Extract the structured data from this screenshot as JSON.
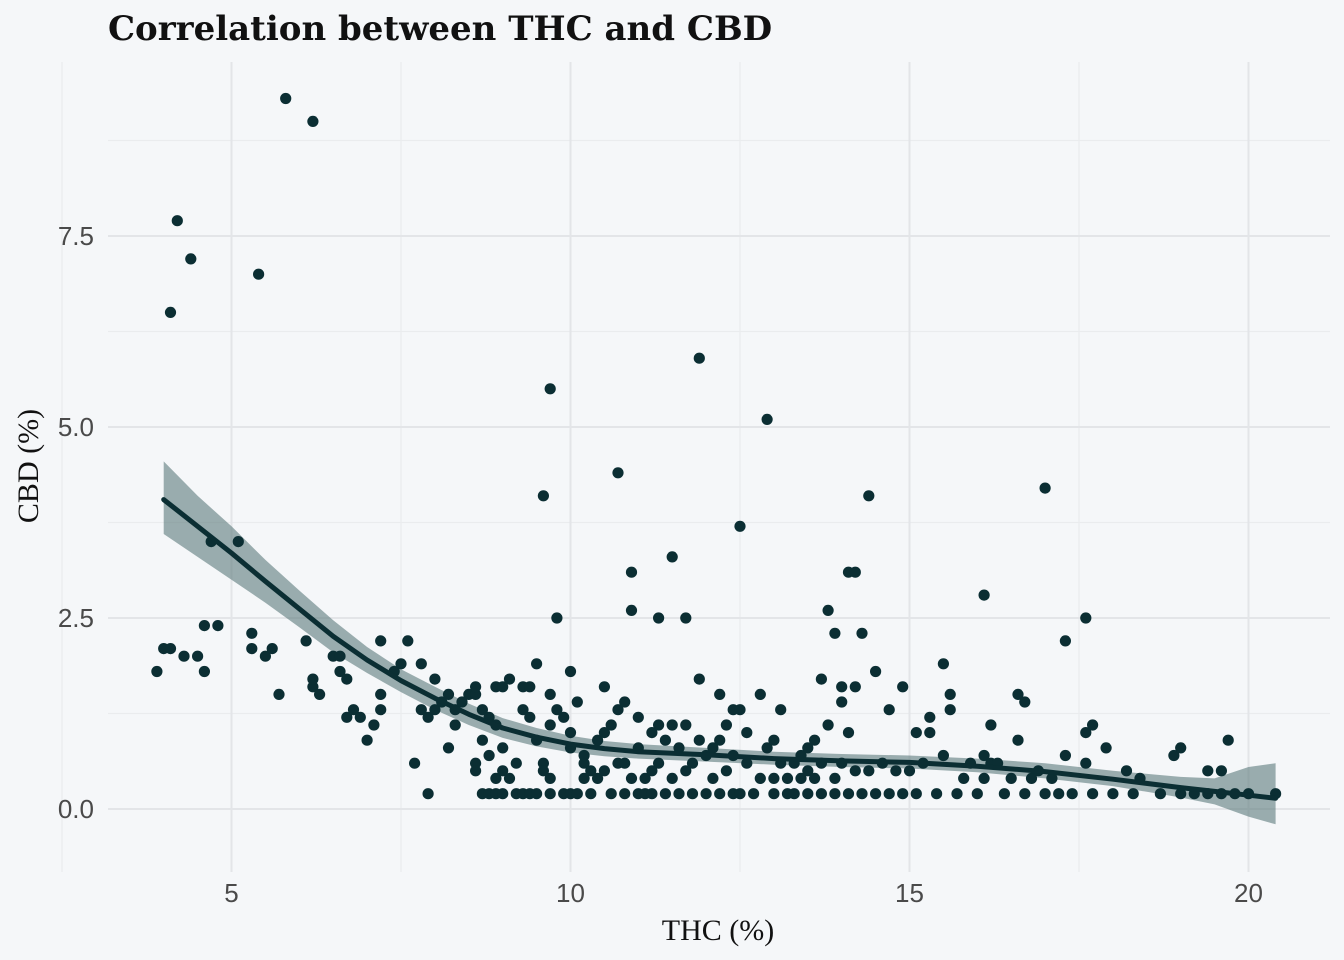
{
  "chart_data": {
    "type": "scatter",
    "title": "Correlation between THC and CBD",
    "xlabel": "THC (%)",
    "ylabel": "CBD (%)",
    "xlim": [
      3.2,
      21.0
    ],
    "ylim": [
      -0.5,
      9.5
    ],
    "x_ticks": [
      5,
      10,
      15,
      20
    ],
    "x_tick_labels": [
      "5",
      "10",
      "15",
      "20"
    ],
    "y_ticks": [
      0,
      2.5,
      5,
      7.5
    ],
    "y_tick_labels": [
      "0.0",
      "2.5",
      "5.0",
      "7.5"
    ],
    "grid": true,
    "legend": "none",
    "colors": {
      "points": "#0b2e33",
      "trend": "#0b2e33",
      "band": "#5b7a7b",
      "background": "#f5f7f9",
      "grid": "#e3e5e8"
    },
    "series": [
      {
        "points": [
          [
            3.9,
            1.8
          ],
          [
            4.0,
            2.1
          ],
          [
            4.1,
            2.1
          ],
          [
            4.1,
            6.5
          ],
          [
            4.2,
            7.7
          ],
          [
            4.3,
            2.0
          ],
          [
            4.4,
            7.2
          ],
          [
            4.5,
            2.0
          ],
          [
            4.6,
            1.8
          ],
          [
            4.6,
            2.4
          ],
          [
            4.7,
            3.5
          ],
          [
            4.8,
            2.4
          ],
          [
            5.1,
            3.5
          ],
          [
            5.3,
            2.3
          ],
          [
            5.3,
            2.1
          ],
          [
            5.4,
            7.0
          ],
          [
            5.5,
            2.0
          ],
          [
            5.6,
            2.1
          ],
          [
            5.7,
            1.5
          ],
          [
            5.8,
            9.3
          ],
          [
            6.1,
            2.2
          ],
          [
            6.2,
            9.0
          ],
          [
            6.2,
            1.6
          ],
          [
            6.3,
            1.5
          ],
          [
            6.2,
            1.7
          ],
          [
            6.5,
            2.0
          ],
          [
            6.6,
            2.0
          ],
          [
            6.6,
            1.8
          ],
          [
            6.7,
            1.7
          ],
          [
            6.7,
            1.2
          ],
          [
            6.8,
            1.3
          ],
          [
            6.9,
            1.2
          ],
          [
            7.0,
            0.9
          ],
          [
            7.1,
            1.1
          ],
          [
            7.2,
            1.3
          ],
          [
            7.2,
            1.5
          ],
          [
            7.2,
            2.2
          ],
          [
            7.4,
            1.8
          ],
          [
            7.5,
            1.9
          ],
          [
            7.6,
            2.2
          ],
          [
            7.7,
            0.6
          ],
          [
            7.8,
            1.9
          ],
          [
            7.8,
            1.3
          ],
          [
            7.9,
            1.2
          ],
          [
            7.9,
            0.2
          ],
          [
            8.0,
            1.3
          ],
          [
            8.0,
            1.7
          ],
          [
            8.1,
            1.4
          ],
          [
            8.2,
            1.5
          ],
          [
            8.2,
            0.8
          ],
          [
            8.3,
            1.1
          ],
          [
            8.3,
            1.3
          ],
          [
            8.4,
            1.4
          ],
          [
            8.5,
            1.5
          ],
          [
            8.6,
            1.5
          ],
          [
            8.6,
            1.6
          ],
          [
            8.6,
            0.6
          ],
          [
            8.6,
            0.5
          ],
          [
            8.7,
            0.9
          ],
          [
            8.7,
            1.3
          ],
          [
            8.7,
            0.2
          ],
          [
            8.8,
            1.2
          ],
          [
            8.8,
            0.7
          ],
          [
            8.8,
            0.2
          ],
          [
            8.9,
            0.4
          ],
          [
            8.9,
            1.6
          ],
          [
            8.9,
            0.2
          ],
          [
            8.9,
            1.1
          ],
          [
            9.0,
            0.5
          ],
          [
            9.0,
            1.6
          ],
          [
            9.0,
            0.8
          ],
          [
            9.0,
            0.2
          ],
          [
            9.1,
            0.4
          ],
          [
            9.1,
            1.7
          ],
          [
            9.2,
            0.2
          ],
          [
            9.2,
            0.6
          ],
          [
            9.3,
            0.2
          ],
          [
            9.3,
            1.3
          ],
          [
            9.3,
            1.6
          ],
          [
            9.4,
            0.2
          ],
          [
            9.4,
            1.6
          ],
          [
            9.4,
            1.2
          ],
          [
            9.5,
            1.9
          ],
          [
            9.5,
            0.2
          ],
          [
            9.5,
            0.9
          ],
          [
            9.6,
            0.6
          ],
          [
            9.6,
            0.5
          ],
          [
            9.6,
            4.1
          ],
          [
            9.7,
            1.1
          ],
          [
            9.7,
            0.4
          ],
          [
            9.7,
            0.2
          ],
          [
            9.7,
            5.5
          ],
          [
            9.7,
            1.5
          ],
          [
            9.8,
            1.3
          ],
          [
            9.8,
            2.5
          ],
          [
            9.9,
            1.2
          ],
          [
            9.9,
            0.2
          ],
          [
            10.0,
            0.8
          ],
          [
            10.0,
            1.8
          ],
          [
            10.0,
            1.0
          ],
          [
            10.0,
            0.2
          ],
          [
            10.1,
            1.4
          ],
          [
            10.1,
            0.2
          ],
          [
            10.2,
            0.4
          ],
          [
            10.2,
            0.6
          ],
          [
            10.2,
            0.7
          ],
          [
            10.3,
            0.5
          ],
          [
            10.3,
            0.2
          ],
          [
            10.4,
            0.9
          ],
          [
            10.4,
            0.4
          ],
          [
            10.5,
            1.0
          ],
          [
            10.5,
            0.5
          ],
          [
            10.5,
            1.6
          ],
          [
            10.6,
            0.2
          ],
          [
            10.6,
            1.1
          ],
          [
            10.7,
            0.6
          ],
          [
            10.7,
            1.3
          ],
          [
            10.7,
            4.4
          ],
          [
            10.8,
            1.4
          ],
          [
            10.8,
            0.6
          ],
          [
            10.8,
            0.2
          ],
          [
            10.9,
            3.1
          ],
          [
            10.9,
            2.6
          ],
          [
            10.9,
            0.4
          ],
          [
            11.0,
            1.2
          ],
          [
            11.0,
            0.2
          ],
          [
            11.0,
            0.8
          ],
          [
            11.1,
            0.4
          ],
          [
            11.1,
            0.2
          ],
          [
            11.2,
            1.0
          ],
          [
            11.2,
            0.5
          ],
          [
            11.2,
            0.2
          ],
          [
            11.3,
            0.6
          ],
          [
            11.3,
            2.5
          ],
          [
            11.3,
            1.1
          ],
          [
            11.4,
            0.9
          ],
          [
            11.4,
            0.2
          ],
          [
            11.5,
            1.1
          ],
          [
            11.5,
            3.3
          ],
          [
            11.5,
            0.4
          ],
          [
            11.6,
            0.2
          ],
          [
            11.6,
            0.8
          ],
          [
            11.7,
            0.5
          ],
          [
            11.7,
            2.5
          ],
          [
            11.7,
            1.1
          ],
          [
            11.8,
            0.2
          ],
          [
            11.8,
            0.6
          ],
          [
            11.9,
            0.9
          ],
          [
            11.9,
            1.7
          ],
          [
            11.9,
            5.9
          ],
          [
            12.0,
            0.2
          ],
          [
            12.0,
            0.7
          ],
          [
            12.1,
            0.4
          ],
          [
            12.1,
            0.8
          ],
          [
            12.2,
            1.5
          ],
          [
            12.2,
            0.2
          ],
          [
            12.2,
            0.9
          ],
          [
            12.3,
            0.5
          ],
          [
            12.3,
            1.1
          ],
          [
            12.4,
            0.2
          ],
          [
            12.4,
            0.7
          ],
          [
            12.4,
            1.3
          ],
          [
            12.5,
            3.7
          ],
          [
            12.5,
            1.3
          ],
          [
            12.5,
            0.2
          ],
          [
            12.6,
            0.6
          ],
          [
            12.6,
            1.0
          ],
          [
            12.7,
            0.2
          ],
          [
            12.8,
            0.4
          ],
          [
            12.8,
            1.5
          ],
          [
            12.9,
            0.8
          ],
          [
            12.9,
            5.1
          ],
          [
            13.0,
            0.2
          ],
          [
            13.0,
            0.4
          ],
          [
            13.0,
            0.9
          ],
          [
            13.1,
            0.6
          ],
          [
            13.1,
            1.3
          ],
          [
            13.2,
            0.2
          ],
          [
            13.2,
            0.4
          ],
          [
            13.3,
            0.6
          ],
          [
            13.3,
            0.2
          ],
          [
            13.4,
            0.7
          ],
          [
            13.4,
            0.4
          ],
          [
            13.5,
            0.5
          ],
          [
            13.5,
            0.8
          ],
          [
            13.5,
            0.2
          ],
          [
            13.6,
            0.4
          ],
          [
            13.6,
            0.9
          ],
          [
            13.7,
            0.2
          ],
          [
            13.7,
            0.6
          ],
          [
            13.7,
            1.7
          ],
          [
            13.8,
            2.6
          ],
          [
            13.8,
            1.1
          ],
          [
            13.9,
            2.3
          ],
          [
            13.9,
            0.4
          ],
          [
            13.9,
            0.2
          ],
          [
            14.0,
            1.6
          ],
          [
            14.0,
            0.6
          ],
          [
            14.0,
            1.4
          ],
          [
            14.1,
            0.2
          ],
          [
            14.1,
            1.0
          ],
          [
            14.1,
            3.1
          ],
          [
            14.2,
            3.1
          ],
          [
            14.2,
            1.6
          ],
          [
            14.2,
            0.5
          ],
          [
            14.3,
            2.3
          ],
          [
            14.3,
            0.2
          ],
          [
            14.4,
            4.1
          ],
          [
            14.4,
            0.5
          ],
          [
            14.5,
            1.8
          ],
          [
            14.5,
            0.2
          ],
          [
            14.6,
            0.6
          ],
          [
            14.7,
            1.3
          ],
          [
            14.7,
            0.2
          ],
          [
            14.8,
            0.5
          ],
          [
            14.9,
            1.6
          ],
          [
            14.9,
            0.2
          ],
          [
            15.0,
            0.5
          ],
          [
            15.1,
            1.0
          ],
          [
            15.1,
            0.2
          ],
          [
            15.2,
            0.6
          ],
          [
            15.3,
            1.0
          ],
          [
            15.3,
            1.2
          ],
          [
            15.4,
            0.2
          ],
          [
            15.5,
            0.7
          ],
          [
            15.5,
            1.9
          ],
          [
            15.6,
            1.5
          ],
          [
            15.6,
            1.3
          ],
          [
            15.7,
            0.2
          ],
          [
            15.8,
            0.4
          ],
          [
            15.9,
            0.6
          ],
          [
            16.0,
            0.2
          ],
          [
            16.1,
            0.7
          ],
          [
            16.1,
            2.8
          ],
          [
            16.1,
            0.4
          ],
          [
            16.2,
            1.1
          ],
          [
            16.2,
            0.6
          ],
          [
            16.3,
            0.6
          ],
          [
            16.4,
            0.2
          ],
          [
            16.5,
            0.4
          ],
          [
            16.6,
            1.5
          ],
          [
            16.6,
            0.9
          ],
          [
            16.7,
            1.4
          ],
          [
            16.7,
            0.2
          ],
          [
            16.8,
            0.4
          ],
          [
            16.9,
            0.5
          ],
          [
            17.0,
            0.2
          ],
          [
            17.0,
            4.2
          ],
          [
            17.1,
            0.4
          ],
          [
            17.2,
            0.2
          ],
          [
            17.3,
            2.2
          ],
          [
            17.3,
            0.7
          ],
          [
            17.4,
            0.2
          ],
          [
            17.6,
            2.5
          ],
          [
            17.6,
            1.0
          ],
          [
            17.6,
            0.6
          ],
          [
            17.7,
            1.1
          ],
          [
            17.7,
            0.2
          ],
          [
            17.9,
            0.8
          ],
          [
            18.0,
            0.2
          ],
          [
            18.2,
            0.5
          ],
          [
            18.3,
            0.2
          ],
          [
            18.4,
            0.4
          ],
          [
            18.7,
            0.2
          ],
          [
            18.9,
            0.7
          ],
          [
            19.0,
            0.2
          ],
          [
            19.0,
            0.8
          ],
          [
            19.2,
            0.2
          ],
          [
            19.4,
            0.5
          ],
          [
            19.4,
            0.2
          ],
          [
            19.6,
            0.2
          ],
          [
            19.7,
            0.9
          ],
          [
            19.6,
            0.5
          ],
          [
            19.8,
            0.2
          ],
          [
            20.0,
            0.2
          ],
          [
            20.4,
            0.2
          ]
        ]
      }
    ],
    "trend": {
      "x": [
        4.0,
        4.5,
        5.0,
        5.5,
        6.0,
        6.5,
        7.0,
        7.5,
        8.0,
        8.5,
        9.0,
        9.5,
        10.0,
        10.5,
        11.0,
        12.0,
        13.0,
        14.0,
        15.0,
        16.0,
        17.0,
        18.0,
        19.0,
        19.5,
        20.0,
        20.4
      ],
      "y": [
        4.05,
        3.7,
        3.35,
        2.98,
        2.62,
        2.26,
        1.95,
        1.68,
        1.45,
        1.24,
        1.06,
        0.94,
        0.85,
        0.79,
        0.75,
        0.71,
        0.66,
        0.63,
        0.61,
        0.56,
        0.49,
        0.39,
        0.28,
        0.23,
        0.18,
        0.14
      ],
      "lower": [
        3.6,
        3.3,
        3.0,
        2.7,
        2.38,
        2.05,
        1.78,
        1.53,
        1.3,
        1.1,
        0.93,
        0.82,
        0.74,
        0.69,
        0.66,
        0.62,
        0.58,
        0.55,
        0.53,
        0.48,
        0.4,
        0.3,
        0.15,
        0.06,
        -0.1,
        -0.2
      ],
      "upper": [
        4.55,
        4.1,
        3.7,
        3.26,
        2.86,
        2.47,
        2.12,
        1.83,
        1.6,
        1.38,
        1.19,
        1.06,
        0.96,
        0.89,
        0.85,
        0.8,
        0.75,
        0.72,
        0.7,
        0.66,
        0.6,
        0.5,
        0.42,
        0.4,
        0.55,
        0.6
      ]
    }
  }
}
